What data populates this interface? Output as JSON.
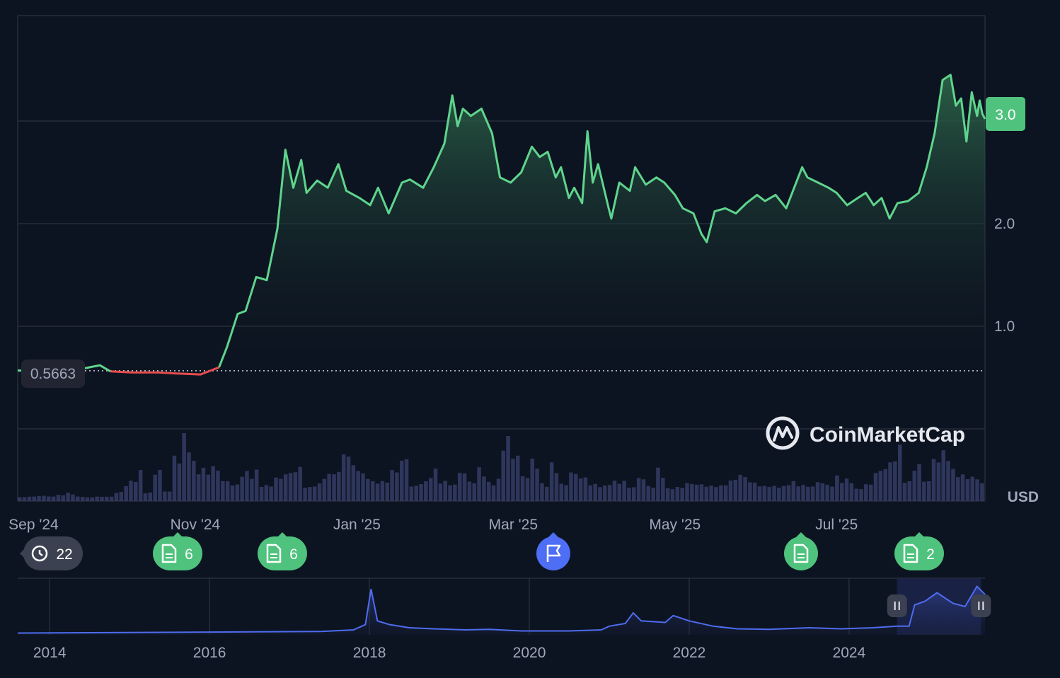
{
  "colors": {
    "background": "#0d1421",
    "up_line": "#5fd48d",
    "down_line": "#e84c4c",
    "grid": "#323846",
    "text": "#a1a7bb",
    "nav_line": "#4e6cf0",
    "badge_green": "#4fc27d",
    "badge_gray": "#3b4150",
    "badge_blue": "#4d6ef5"
  },
  "chart_data": {
    "type": "line",
    "currency_label": "USD",
    "baseline_value": 0.5663,
    "baseline_label": "0.5663",
    "current_value": 3.0,
    "current_label": "3.0",
    "y_axis": {
      "ticks": [
        1.0,
        2.0,
        3.0
      ],
      "tick_labels": [
        "1.0",
        "2.0",
        "3.0"
      ],
      "range": [
        -0.5,
        3.3
      ]
    },
    "x_axis": {
      "range": [
        "2024-08-26",
        "2025-08-26"
      ],
      "tick_labels": [
        "Sep '24",
        "Nov '24",
        "Jan '25",
        "Mar '25",
        "May '25",
        "Jul '25"
      ],
      "tick_dates": [
        "2024-09-01",
        "2024-11-01",
        "2025-01-01",
        "2025-03-01",
        "2025-05-01",
        "2025-07-01"
      ]
    },
    "series": [
      {
        "points": [
          [
            "2024-08-26",
            0.57
          ],
          [
            "2024-09-01",
            0.56
          ],
          [
            "2024-09-10",
            0.58
          ],
          [
            "2024-09-20",
            0.59
          ],
          [
            "2024-09-26",
            0.62
          ],
          [
            "2024-09-30",
            0.56
          ],
          [
            "2024-10-08",
            0.55
          ],
          [
            "2024-10-18",
            0.55
          ],
          [
            "2024-10-25",
            0.54
          ],
          [
            "2024-11-03",
            0.53
          ],
          [
            "2024-11-10",
            0.6
          ],
          [
            "2024-11-13",
            0.8
          ],
          [
            "2024-11-17",
            1.12
          ],
          [
            "2024-11-20",
            1.15
          ],
          [
            "2024-11-24",
            1.48
          ],
          [
            "2024-11-28",
            1.45
          ],
          [
            "2024-12-02",
            1.95
          ],
          [
            "2024-12-05",
            2.72
          ],
          [
            "2024-12-08",
            2.35
          ],
          [
            "2024-12-11",
            2.62
          ],
          [
            "2024-12-13",
            2.3
          ],
          [
            "2024-12-17",
            2.42
          ],
          [
            "2024-12-21",
            2.35
          ],
          [
            "2024-12-25",
            2.58
          ],
          [
            "2024-12-28",
            2.32
          ],
          [
            "2025-01-02",
            2.25
          ],
          [
            "2025-01-06",
            2.18
          ],
          [
            "2025-01-09",
            2.35
          ],
          [
            "2025-01-13",
            2.1
          ],
          [
            "2025-01-18",
            2.4
          ],
          [
            "2025-01-21",
            2.43
          ],
          [
            "2025-01-26",
            2.35
          ],
          [
            "2025-01-30",
            2.55
          ],
          [
            "2025-02-03",
            2.78
          ],
          [
            "2025-02-06",
            3.25
          ],
          [
            "2025-02-08",
            2.95
          ],
          [
            "2025-02-10",
            3.12
          ],
          [
            "2025-02-13",
            3.05
          ],
          [
            "2025-02-17",
            3.12
          ],
          [
            "2025-02-21",
            2.88
          ],
          [
            "2025-02-24",
            2.45
          ],
          [
            "2025-02-28",
            2.4
          ],
          [
            "2025-03-04",
            2.5
          ],
          [
            "2025-03-08",
            2.75
          ],
          [
            "2025-03-11",
            2.65
          ],
          [
            "2025-03-14",
            2.7
          ],
          [
            "2025-03-17",
            2.45
          ],
          [
            "2025-03-19",
            2.55
          ],
          [
            "2025-03-22",
            2.25
          ],
          [
            "2025-03-24",
            2.35
          ],
          [
            "2025-03-27",
            2.2
          ],
          [
            "2025-03-29",
            2.9
          ],
          [
            "2025-03-31",
            2.4
          ],
          [
            "2025-04-02",
            2.58
          ],
          [
            "2025-04-06",
            2.15
          ],
          [
            "2025-04-07",
            2.05
          ],
          [
            "2025-04-10",
            2.4
          ],
          [
            "2025-04-14",
            2.32
          ],
          [
            "2025-04-16",
            2.55
          ],
          [
            "2025-04-20",
            2.38
          ],
          [
            "2025-04-24",
            2.45
          ],
          [
            "2025-04-27",
            2.4
          ],
          [
            "2025-05-01",
            2.28
          ],
          [
            "2025-05-04",
            2.15
          ],
          [
            "2025-05-08",
            2.1
          ],
          [
            "2025-05-11",
            1.9
          ],
          [
            "2025-05-13",
            1.82
          ],
          [
            "2025-05-16",
            2.12
          ],
          [
            "2025-05-20",
            2.15
          ],
          [
            "2025-05-24",
            2.1
          ],
          [
            "2025-05-28",
            2.2
          ],
          [
            "2025-06-01",
            2.28
          ],
          [
            "2025-06-04",
            2.22
          ],
          [
            "2025-06-08",
            2.28
          ],
          [
            "2025-06-12",
            2.15
          ],
          [
            "2025-06-15",
            2.35
          ],
          [
            "2025-06-18",
            2.55
          ],
          [
            "2025-06-20",
            2.45
          ],
          [
            "2025-06-24",
            2.4
          ],
          [
            "2025-06-28",
            2.35
          ],
          [
            "2025-07-01",
            2.3
          ],
          [
            "2025-07-05",
            2.18
          ],
          [
            "2025-07-09",
            2.25
          ],
          [
            "2025-07-12",
            2.3
          ],
          [
            "2025-07-15",
            2.18
          ],
          [
            "2025-07-18",
            2.25
          ],
          [
            "2025-07-21",
            2.05
          ],
          [
            "2025-07-24",
            2.2
          ],
          [
            "2025-07-28",
            2.22
          ],
          [
            "2025-08-01",
            2.3
          ],
          [
            "2025-08-04",
            2.55
          ],
          [
            "2025-08-07",
            2.88
          ],
          [
            "2025-08-10",
            3.4
          ],
          [
            "2025-08-13",
            3.45
          ],
          [
            "2025-08-15",
            3.15
          ],
          [
            "2025-08-17",
            3.22
          ],
          [
            "2025-08-19",
            2.8
          ],
          [
            "2025-08-21",
            3.28
          ],
          [
            "2025-08-23",
            3.05
          ],
          [
            "2025-08-24",
            3.2
          ],
          [
            "2025-08-25",
            3.07
          ],
          [
            "2025-08-26",
            3.02
          ]
        ]
      }
    ],
    "volume_bars": 40,
    "navigator": {
      "tick_labels": [
        "2014",
        "2016",
        "2018",
        "2020",
        "2022",
        "2024"
      ],
      "tick_years": [
        2014,
        2016,
        2018,
        2020,
        2022,
        2024
      ],
      "range": [
        2013.6,
        2025.7
      ],
      "selection": [
        2024.6,
        2025.65
      ],
      "points": [
        [
          2013.6,
          0.02
        ],
        [
          2017.4,
          0.05
        ],
        [
          2017.8,
          0.08
        ],
        [
          2017.95,
          0.18
        ],
        [
          2018.02,
          0.85
        ],
        [
          2018.1,
          0.25
        ],
        [
          2018.25,
          0.18
        ],
        [
          2018.5,
          0.12
        ],
        [
          2018.8,
          0.1
        ],
        [
          2019.2,
          0.08
        ],
        [
          2019.5,
          0.09
        ],
        [
          2019.9,
          0.06
        ],
        [
          2020.5,
          0.06
        ],
        [
          2020.9,
          0.08
        ],
        [
          2021.0,
          0.15
        ],
        [
          2021.2,
          0.2
        ],
        [
          2021.3,
          0.4
        ],
        [
          2021.4,
          0.25
        ],
        [
          2021.7,
          0.22
        ],
        [
          2021.8,
          0.35
        ],
        [
          2022.0,
          0.25
        ],
        [
          2022.3,
          0.15
        ],
        [
          2022.6,
          0.1
        ],
        [
          2023.0,
          0.09
        ],
        [
          2023.5,
          0.12
        ],
        [
          2023.9,
          0.1
        ],
        [
          2024.3,
          0.12
        ],
        [
          2024.6,
          0.15
        ],
        [
          2024.75,
          0.15
        ],
        [
          2024.82,
          0.55
        ],
        [
          2024.95,
          0.62
        ],
        [
          2025.1,
          0.78
        ],
        [
          2025.3,
          0.58
        ],
        [
          2025.45,
          0.52
        ],
        [
          2025.6,
          0.9
        ],
        [
          2025.7,
          0.75
        ]
      ]
    }
  },
  "events": [
    {
      "type": "history",
      "count": "22"
    },
    {
      "type": "news",
      "count": "6"
    },
    {
      "type": "news",
      "count": "6"
    },
    {
      "type": "flag",
      "count": ""
    },
    {
      "type": "news",
      "count": ""
    },
    {
      "type": "news",
      "count": "2"
    }
  ],
  "watermark": {
    "brand": "CoinMarketCap"
  }
}
